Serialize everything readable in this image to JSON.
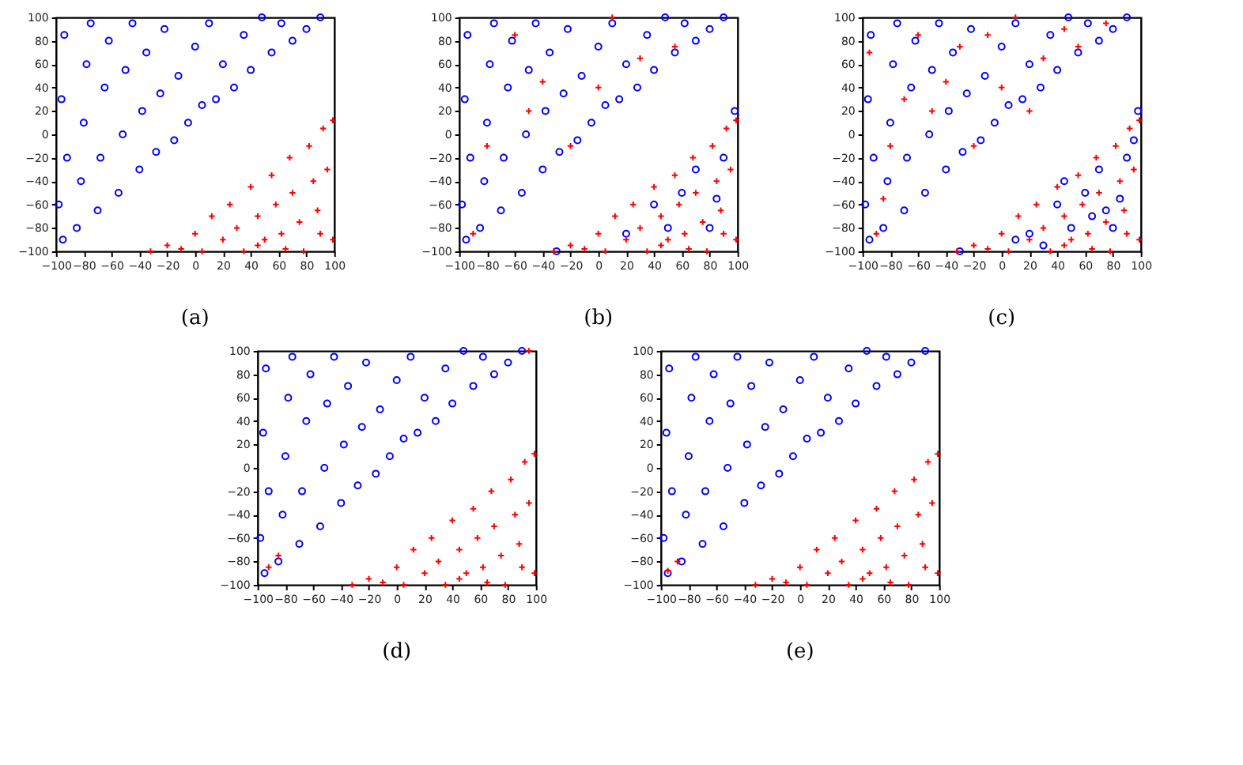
{
  "chart_data": [
    {
      "type": "scatter",
      "annotations": [
        "(a)"
      ],
      "xlim": [
        -100,
        100
      ],
      "ylim": [
        -100,
        100
      ],
      "xticks": [
        -100,
        -80,
        -60,
        -40,
        -20,
        0,
        20,
        40,
        60,
        80,
        100
      ],
      "yticks": [
        -100,
        -80,
        -60,
        -40,
        -20,
        0,
        20,
        40,
        60,
        80,
        100
      ],
      "series": [
        {
          "color": "#0000ff",
          "marker": "circle",
          "x": [
            -95,
            -98,
            -92,
            -96,
            -94,
            -85,
            -82,
            -80,
            -78,
            -75,
            -70,
            -68,
            -65,
            -62,
            -55,
            -52,
            -50,
            -45,
            -40,
            -38,
            -35,
            -28,
            -25,
            -22,
            -15,
            -12,
            -5,
            0,
            5,
            10,
            15,
            20,
            28,
            35,
            40,
            48,
            55,
            62,
            70,
            80,
            90
          ],
          "values": [
            -90,
            -60,
            -20,
            30,
            85,
            -80,
            -40,
            10,
            60,
            95,
            -65,
            -20,
            40,
            80,
            -50,
            0,
            55,
            95,
            -30,
            20,
            70,
            -15,
            35,
            90,
            -5,
            50,
            10,
            75,
            25,
            95,
            30,
            60,
            40,
            85,
            55,
            100,
            70,
            95,
            80,
            90,
            100
          ]
        },
        {
          "color": "#ff0000",
          "marker": "cross",
          "x": [
            -32,
            -20,
            -10,
            0,
            5,
            12,
            20,
            25,
            30,
            35,
            40,
            45,
            50,
            55,
            58,
            62,
            68,
            70,
            75,
            78,
            82,
            85,
            88,
            92,
            95,
            99,
            99,
            90,
            65,
            45
          ],
          "values": [
            -100,
            -95,
            -98,
            -85,
            -100,
            -70,
            -90,
            -60,
            -80,
            -100,
            -45,
            -70,
            -90,
            -35,
            -60,
            -85,
            -20,
            -50,
            -75,
            -100,
            -10,
            -40,
            -65,
            5,
            -30,
            12,
            -90,
            -85,
            -98,
            -95
          ]
        }
      ]
    },
    {
      "type": "scatter",
      "annotations": [
        "(b)"
      ],
      "xlim": [
        -100,
        100
      ],
      "ylim": [
        -100,
        100
      ],
      "xticks": [
        -100,
        -80,
        -60,
        -40,
        -20,
        0,
        20,
        40,
        60,
        80,
        100
      ],
      "yticks": [
        -100,
        -80,
        -60,
        -40,
        -20,
        0,
        20,
        40,
        60,
        80,
        100
      ],
      "series": [
        {
          "color": "#0000ff",
          "marker": "circle",
          "x": [
            -95,
            -98,
            -92,
            -96,
            -94,
            -85,
            -82,
            -80,
            -78,
            -75,
            -70,
            -68,
            -65,
            -62,
            -55,
            -52,
            -50,
            -45,
            -40,
            -38,
            -35,
            -28,
            -25,
            -22,
            -15,
            -12,
            -5,
            0,
            5,
            10,
            15,
            20,
            28,
            35,
            40,
            48,
            55,
            62,
            70,
            80,
            90,
            20,
            40,
            60,
            80,
            90,
            98,
            70,
            50,
            85,
            -30
          ],
          "values": [
            -90,
            -60,
            -20,
            30,
            85,
            -80,
            -40,
            10,
            60,
            95,
            -65,
            -20,
            40,
            80,
            -50,
            0,
            55,
            95,
            -30,
            20,
            70,
            -15,
            35,
            90,
            -5,
            50,
            10,
            75,
            25,
            95,
            30,
            60,
            40,
            85,
            55,
            100,
            70,
            95,
            80,
            90,
            100,
            -85,
            -60,
            -50,
            -80,
            -20,
            20,
            -30,
            -80,
            -55,
            -100
          ]
        },
        {
          "color": "#ff0000",
          "marker": "cross",
          "x": [
            -32,
            -20,
            -10,
            0,
            5,
            12,
            20,
            25,
            30,
            35,
            40,
            45,
            50,
            55,
            58,
            62,
            68,
            70,
            75,
            78,
            82,
            85,
            88,
            92,
            95,
            99,
            99,
            90,
            65,
            45,
            -90,
            -60,
            -40,
            -20,
            0,
            30,
            55,
            10,
            -80,
            -50
          ],
          "values": [
            -100,
            -95,
            -98,
            -85,
            -100,
            -70,
            -90,
            -60,
            -80,
            -100,
            -45,
            -70,
            -90,
            -35,
            -60,
            -85,
            -20,
            -50,
            -75,
            -100,
            -10,
            -40,
            -65,
            5,
            -30,
            12,
            -90,
            -85,
            -98,
            -95,
            -85,
            85,
            45,
            -10,
            40,
            65,
            75,
            100,
            -10,
            20
          ]
        }
      ]
    },
    {
      "type": "scatter",
      "annotations": [
        "(c)"
      ],
      "xlim": [
        -100,
        100
      ],
      "ylim": [
        -100,
        100
      ],
      "xticks": [
        -100,
        -80,
        -60,
        -40,
        -20,
        0,
        20,
        40,
        60,
        80,
        100
      ],
      "yticks": [
        -100,
        -80,
        -60,
        -40,
        -20,
        0,
        20,
        40,
        60,
        80,
        100
      ],
      "series": [
        {
          "color": "#0000ff",
          "marker": "circle",
          "x": [
            -95,
            -98,
            -92,
            -96,
            -94,
            -85,
            -82,
            -80,
            -78,
            -75,
            -70,
            -68,
            -65,
            -62,
            -55,
            -52,
            -50,
            -45,
            -40,
            -38,
            -35,
            -28,
            -25,
            -22,
            -15,
            -12,
            -5,
            0,
            5,
            10,
            15,
            20,
            28,
            35,
            40,
            48,
            55,
            62,
            70,
            80,
            90,
            20,
            40,
            60,
            80,
            90,
            98,
            70,
            50,
            85,
            -30,
            30,
            45,
            75,
            95,
            10,
            65
          ],
          "values": [
            -90,
            -60,
            -20,
            30,
            85,
            -80,
            -40,
            10,
            60,
            95,
            -65,
            -20,
            40,
            80,
            -50,
            0,
            55,
            95,
            -30,
            20,
            70,
            -15,
            35,
            90,
            -5,
            50,
            10,
            75,
            25,
            95,
            30,
            60,
            40,
            85,
            55,
            100,
            70,
            95,
            80,
            90,
            100,
            -85,
            -60,
            -50,
            -80,
            -20,
            20,
            -30,
            -80,
            -55,
            -100,
            -95,
            -40,
            -65,
            -5,
            -90,
            -70
          ]
        },
        {
          "color": "#ff0000",
          "marker": "cross",
          "x": [
            -32,
            -20,
            -10,
            0,
            5,
            12,
            20,
            25,
            30,
            35,
            40,
            45,
            50,
            55,
            58,
            62,
            68,
            70,
            75,
            78,
            82,
            85,
            88,
            92,
            95,
            99,
            99,
            90,
            65,
            45,
            -90,
            -60,
            -40,
            -20,
            0,
            30,
            55,
            10,
            -80,
            -50,
            -95,
            -70,
            -30,
            20,
            45,
            -85,
            -10,
            75
          ],
          "values": [
            -100,
            -95,
            -98,
            -85,
            -100,
            -70,
            -90,
            -60,
            -80,
            -100,
            -45,
            -70,
            -90,
            -35,
            -60,
            -85,
            -20,
            -50,
            -75,
            -100,
            -10,
            -40,
            -65,
            5,
            -30,
            12,
            -90,
            -85,
            -98,
            -95,
            -85,
            85,
            45,
            -10,
            40,
            65,
            75,
            100,
            -10,
            20,
            70,
            30,
            75,
            20,
            90,
            -55,
            85,
            95
          ]
        }
      ]
    },
    {
      "type": "scatter",
      "annotations": [
        "(d)"
      ],
      "xlim": [
        -100,
        100
      ],
      "ylim": [
        -100,
        100
      ],
      "xticks": [
        -100,
        -80,
        -60,
        -40,
        -20,
        0,
        20,
        40,
        60,
        80,
        100
      ],
      "yticks": [
        -100,
        -80,
        -60,
        -40,
        -20,
        0,
        20,
        40,
        60,
        80,
        100
      ],
      "series": [
        {
          "color": "#0000ff",
          "marker": "circle",
          "x": [
            -95,
            -98,
            -92,
            -96,
            -94,
            -85,
            -82,
            -80,
            -78,
            -75,
            -70,
            -68,
            -65,
            -62,
            -55,
            -52,
            -50,
            -45,
            -40,
            -38,
            -35,
            -28,
            -25,
            -22,
            -15,
            -12,
            -5,
            0,
            5,
            10,
            15,
            20,
            28,
            35,
            40,
            48,
            55,
            62,
            70,
            80,
            90
          ],
          "values": [
            -90,
            -60,
            -20,
            30,
            85,
            -80,
            -40,
            10,
            60,
            95,
            -65,
            -20,
            40,
            80,
            -50,
            0,
            55,
            95,
            -30,
            20,
            70,
            -15,
            35,
            90,
            -5,
            50,
            10,
            75,
            25,
            95,
            30,
            60,
            40,
            85,
            55,
            100,
            70,
            95,
            80,
            90,
            100
          ]
        },
        {
          "color": "#ff0000",
          "marker": "cross",
          "x": [
            -32,
            -20,
            -10,
            0,
            5,
            12,
            20,
            25,
            30,
            35,
            40,
            45,
            50,
            55,
            58,
            62,
            68,
            70,
            75,
            78,
            82,
            85,
            88,
            92,
            95,
            99,
            99,
            90,
            65,
            45,
            -92,
            -85,
            95
          ],
          "values": [
            -100,
            -95,
            -98,
            -85,
            -100,
            -70,
            -90,
            -60,
            -80,
            -100,
            -45,
            -70,
            -90,
            -35,
            -60,
            -85,
            -20,
            -50,
            -75,
            -100,
            -10,
            -40,
            -65,
            5,
            -30,
            12,
            -90,
            -85,
            -98,
            -95,
            -85,
            -75,
            100
          ]
        }
      ]
    },
    {
      "type": "scatter",
      "annotations": [
        "(e)"
      ],
      "xlim": [
        -100,
        100
      ],
      "ylim": [
        -100,
        100
      ],
      "xticks": [
        -100,
        -80,
        -60,
        -40,
        -20,
        0,
        20,
        40,
        60,
        80,
        100
      ],
      "yticks": [
        -100,
        -80,
        -60,
        -40,
        -20,
        0,
        20,
        40,
        60,
        80,
        100
      ],
      "series": [
        {
          "color": "#0000ff",
          "marker": "circle",
          "x": [
            -95,
            -98,
            -92,
            -96,
            -94,
            -85,
            -82,
            -80,
            -78,
            -75,
            -70,
            -68,
            -65,
            -62,
            -55,
            -52,
            -50,
            -45,
            -40,
            -38,
            -35,
            -28,
            -25,
            -22,
            -15,
            -12,
            -5,
            0,
            5,
            10,
            15,
            20,
            28,
            35,
            40,
            48,
            55,
            62,
            70,
            80,
            90
          ],
          "values": [
            -90,
            -60,
            -20,
            30,
            85,
            -80,
            -40,
            10,
            60,
            95,
            -65,
            -20,
            40,
            80,
            -50,
            0,
            55,
            95,
            -30,
            20,
            70,
            -15,
            35,
            90,
            -5,
            50,
            10,
            75,
            25,
            95,
            30,
            60,
            40,
            85,
            55,
            100,
            70,
            95,
            80,
            90,
            100
          ]
        },
        {
          "color": "#ff0000",
          "marker": "cross",
          "x": [
            -32,
            -20,
            -10,
            0,
            5,
            12,
            20,
            25,
            30,
            35,
            40,
            45,
            50,
            55,
            58,
            62,
            68,
            70,
            75,
            78,
            82,
            85,
            88,
            92,
            95,
            99,
            99,
            90,
            65,
            45,
            -95,
            -88
          ],
          "values": [
            -100,
            -95,
            -98,
            -85,
            -100,
            -70,
            -90,
            -60,
            -80,
            -100,
            -45,
            -70,
            -90,
            -35,
            -60,
            -85,
            -20,
            -50,
            -75,
            -100,
            -10,
            -40,
            -65,
            5,
            -30,
            12,
            -90,
            -85,
            -98,
            -95,
            -88,
            -80
          ]
        }
      ]
    }
  ]
}
